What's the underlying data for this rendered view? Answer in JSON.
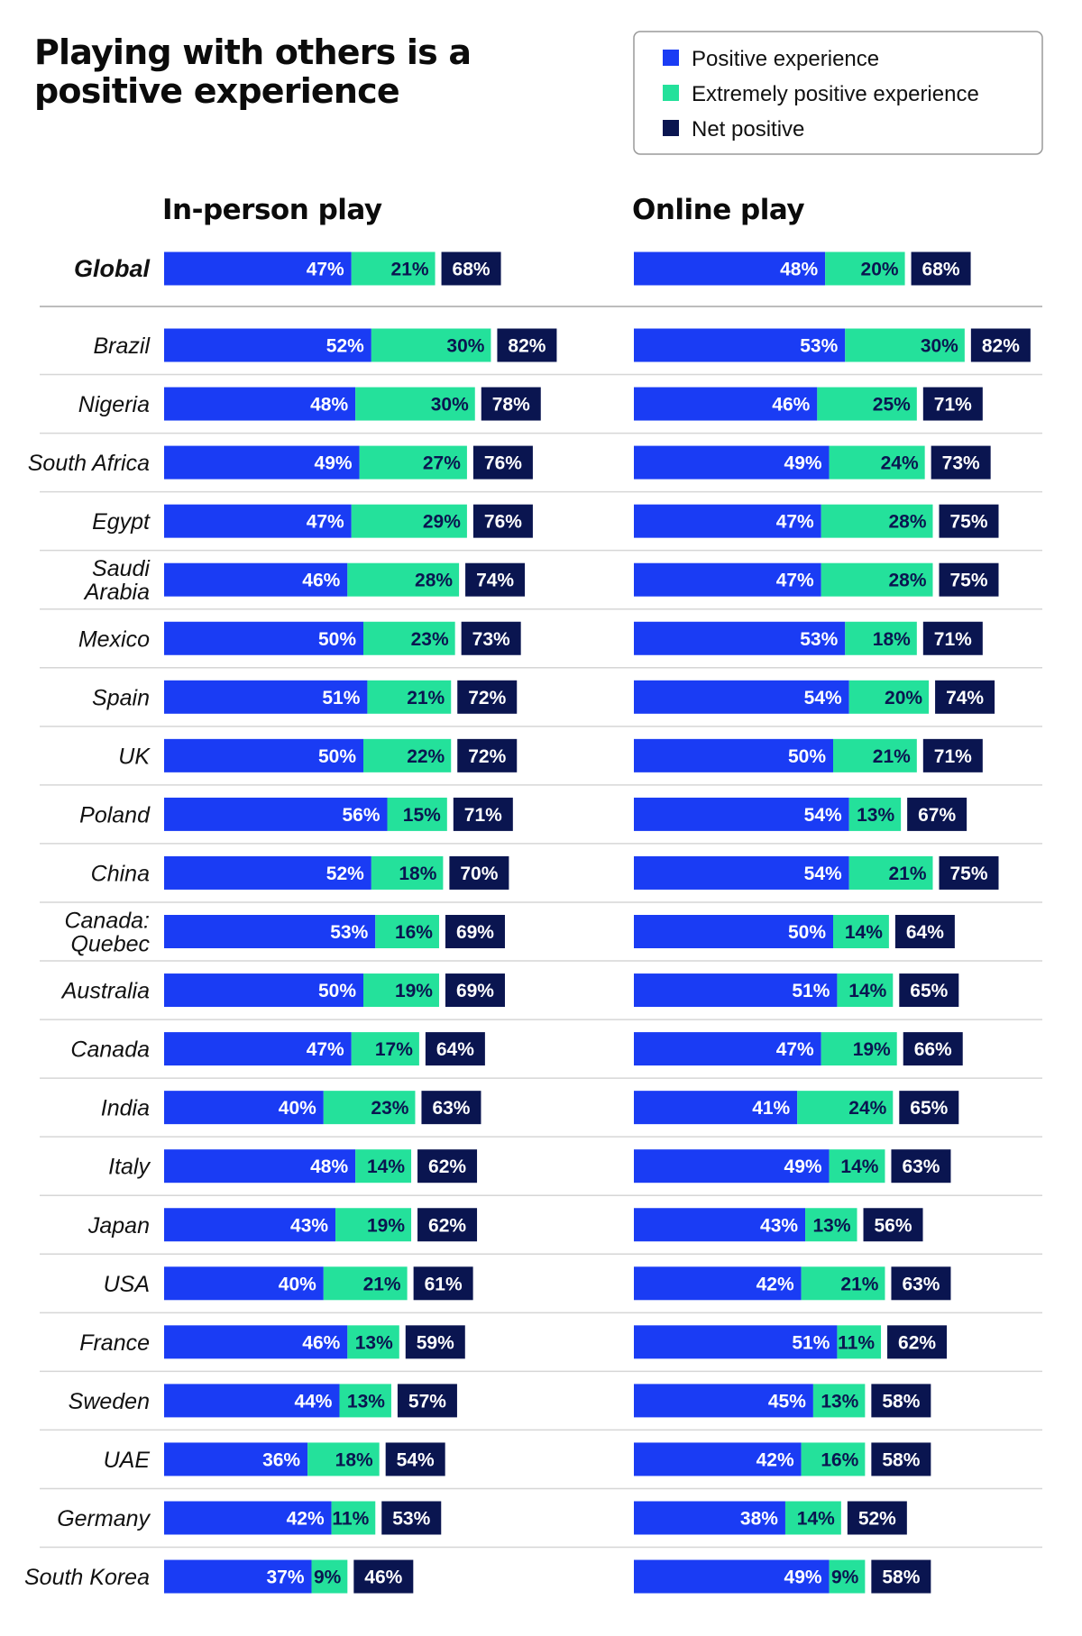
{
  "title_lines": [
    "Playing with others is a",
    "positive experience"
  ],
  "colors": {
    "positive": "#1a3cf4",
    "extremely": "#24e19b",
    "net": "#0a1550",
    "divider": "#d6d6d6"
  },
  "legend": [
    {
      "label": "Positive experience",
      "color": "#1a3cf4"
    },
    {
      "label": "Extremely positive experience",
      "color": "#24e19b"
    },
    {
      "label": "Net positive",
      "color": "#0a1550"
    }
  ],
  "chart_data": {
    "type": "bar",
    "stacked": true,
    "orientation": "horizontal",
    "title": "Playing with others is a positive experience",
    "unit": "%",
    "categories": [
      "Global",
      "Brazil",
      "Nigeria",
      "South Africa",
      "Egypt",
      "Saudi Arabia",
      "Mexico",
      "Spain",
      "UK",
      "Poland",
      "China",
      "Canada: Quebec",
      "Australia",
      "Canada",
      "India",
      "Italy",
      "Japan",
      "USA",
      "France",
      "Sweden",
      "UAE",
      "Germany",
      "South Korea"
    ],
    "category_lines": [
      [
        "Global"
      ],
      [
        "Brazil"
      ],
      [
        "Nigeria"
      ],
      [
        "South Africa"
      ],
      [
        "Egypt"
      ],
      [
        "Saudi",
        "Arabia"
      ],
      [
        "Mexico"
      ],
      [
        "Spain"
      ],
      [
        "UK"
      ],
      [
        "Poland"
      ],
      [
        "China"
      ],
      [
        "Canada:",
        "Quebec"
      ],
      [
        "Australia"
      ],
      [
        "Canada"
      ],
      [
        "India"
      ],
      [
        "Italy"
      ],
      [
        "Japan"
      ],
      [
        "USA"
      ],
      [
        "France"
      ],
      [
        "Sweden"
      ],
      [
        "UAE"
      ],
      [
        "Germany"
      ],
      [
        "South Korea"
      ]
    ],
    "panels": [
      {
        "title": "In-person play",
        "series": [
          {
            "name": "Positive experience",
            "values": [
              47,
              52,
              48,
              49,
              47,
              46,
              50,
              51,
              50,
              56,
              52,
              53,
              50,
              47,
              40,
              48,
              43,
              40,
              46,
              44,
              36,
              42,
              37
            ]
          },
          {
            "name": "Extremely positive experience",
            "values": [
              21,
              30,
              30,
              27,
              29,
              28,
              23,
              21,
              22,
              15,
              18,
              16,
              19,
              17,
              23,
              14,
              19,
              21,
              13,
              13,
              18,
              11,
              9
            ]
          },
          {
            "name": "Net positive",
            "values": [
              68,
              82,
              78,
              76,
              76,
              74,
              73,
              72,
              72,
              71,
              70,
              69,
              69,
              64,
              63,
              62,
              62,
              61,
              59,
              57,
              54,
              53,
              46
            ]
          }
        ]
      },
      {
        "title": "Online play",
        "series": [
          {
            "name": "Positive experience",
            "values": [
              48,
              53,
              46,
              49,
              47,
              47,
              53,
              54,
              50,
              54,
              54,
              50,
              51,
              47,
              41,
              49,
              43,
              42,
              51,
              45,
              42,
              38,
              49
            ]
          },
          {
            "name": "Extremely positive experience",
            "values": [
              20,
              30,
              25,
              24,
              28,
              28,
              18,
              20,
              21,
              13,
              21,
              14,
              14,
              19,
              24,
              14,
              13,
              21,
              11,
              13,
              16,
              14,
              9
            ]
          },
          {
            "name": "Net positive",
            "values": [
              68,
              82,
              71,
              73,
              75,
              75,
              71,
              74,
              71,
              67,
              75,
              64,
              65,
              66,
              65,
              63,
              56,
              63,
              62,
              58,
              58,
              52,
              58
            ]
          }
        ]
      }
    ]
  }
}
